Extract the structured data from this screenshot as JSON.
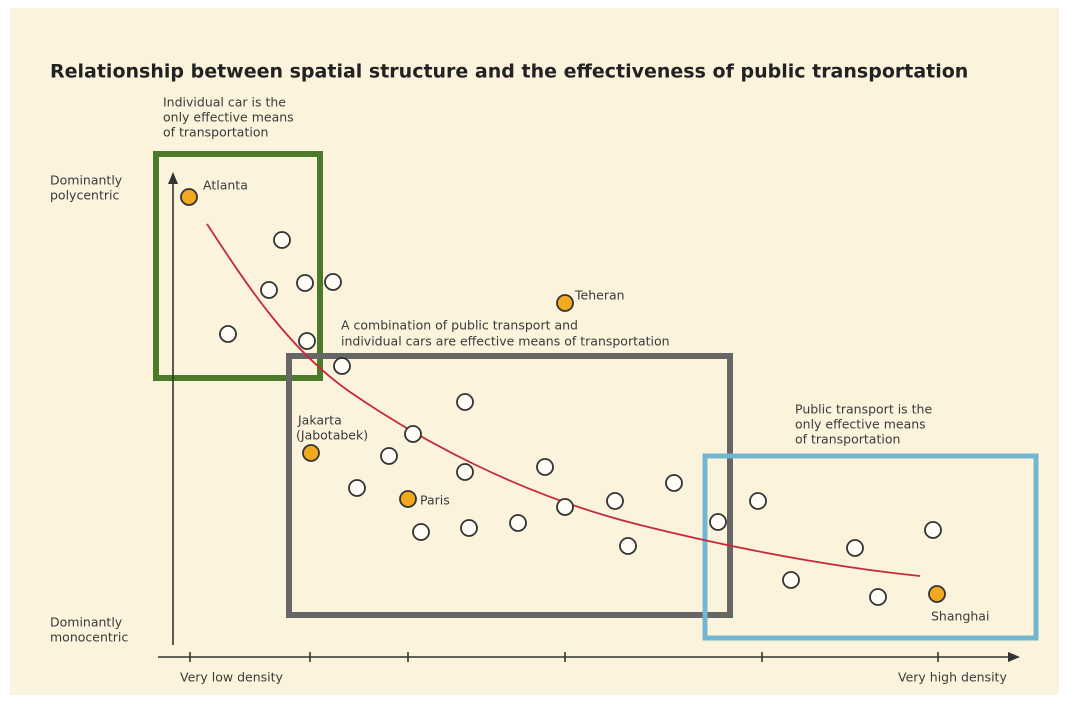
{
  "title": "Relationship between spatial structure and the effectiveness of public transportation",
  "annotations": {
    "car_only": [
      "Individual car is the",
      "only effective means",
      "of transportation"
    ],
    "combination": [
      "A combination of public transport and",
      "individual cars are effective means of transportation"
    ],
    "transit_only": [
      "Public transport is the",
      "only effective means",
      "of transportation"
    ]
  },
  "y_axis": {
    "top": [
      "Dominantly",
      "polycentric"
    ],
    "bottom": [
      "Dominantly",
      "monocentric"
    ]
  },
  "x_axis": {
    "left": "Very low density",
    "right": "Very high density"
  },
  "cities": {
    "atlanta": "Atlanta",
    "teheran": "Teheran",
    "jakarta": [
      "Jakarta",
      "(Jabotabek)"
    ],
    "paris": "Paris",
    "shanghai": "Shanghai"
  }
}
